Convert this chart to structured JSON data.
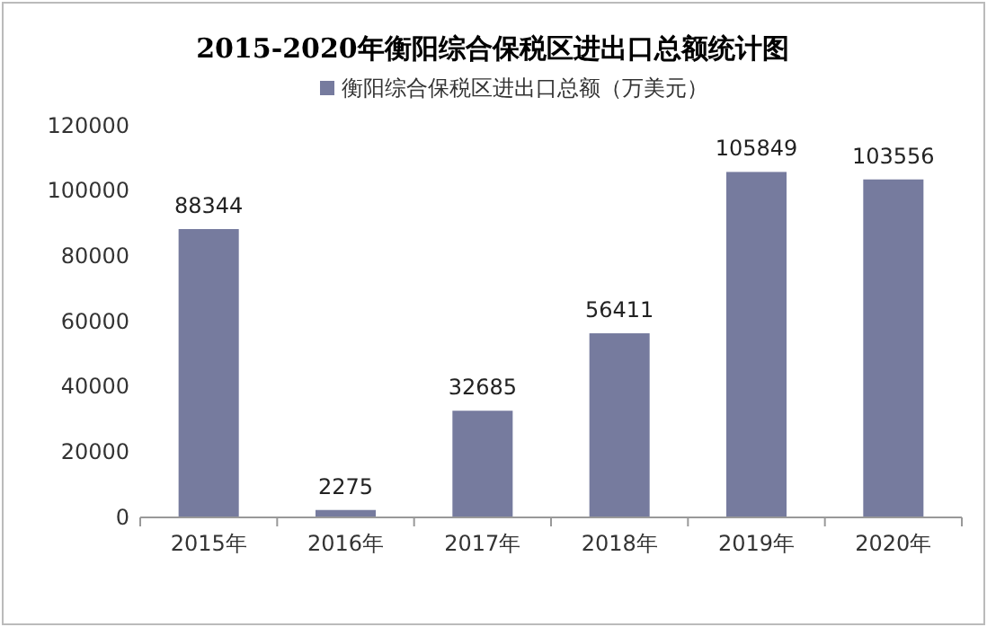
{
  "chart_data": {
    "type": "bar",
    "title": "2015-2020年衡阳综合保税区进出口总额统计图",
    "categories": [
      "2015年",
      "2016年",
      "2017年",
      "2018年",
      "2019年",
      "2020年"
    ],
    "series": [
      {
        "name": "衡阳综合保税区进出口总额（万美元）",
        "color": "#767b9e",
        "values": [
          88344,
          2275,
          32685,
          56411,
          105849,
          103556
        ]
      }
    ],
    "ylim": [
      0,
      120000
    ],
    "yticks": [
      0,
      20000,
      40000,
      60000,
      80000,
      100000,
      120000
    ],
    "data_labels": true,
    "legend": "top",
    "grid": false
  }
}
